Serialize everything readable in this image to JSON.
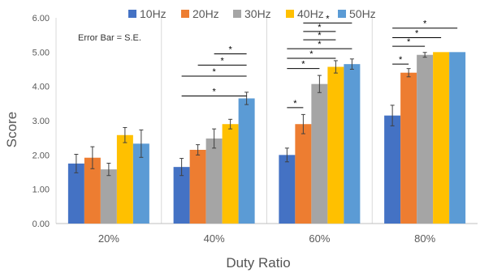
{
  "chart_data": {
    "type": "bar",
    "title": "",
    "xlabel": "Duty Ratio",
    "ylabel": "Score",
    "ylim": [
      0,
      6
    ],
    "yticks": [
      "0.00",
      "1.00",
      "2.00",
      "3.00",
      "4.00",
      "5.00",
      "6.00"
    ],
    "grid": "vertical category separators",
    "legend_position": "top",
    "annotation": "Error Bar = S.E.",
    "categories": [
      "20%",
      "40%",
      "60%",
      "80%"
    ],
    "series": [
      {
        "name": "10Hz",
        "color": "#4472C4",
        "values": [
          1.75,
          1.65,
          2.0,
          3.15
        ],
        "errors": [
          0.27,
          0.25,
          0.2,
          0.3
        ]
      },
      {
        "name": "20Hz",
        "color": "#ED7D31",
        "values": [
          1.92,
          2.15,
          2.9,
          4.4
        ],
        "errors": [
          0.32,
          0.15,
          0.28,
          0.12
        ]
      },
      {
        "name": "30Hz",
        "color": "#A5A5A5",
        "values": [
          1.58,
          2.48,
          4.07,
          4.92
        ],
        "errors": [
          0.18,
          0.28,
          0.25,
          0.07
        ]
      },
      {
        "name": "40Hz",
        "color": "#FFC000",
        "values": [
          2.58,
          2.9,
          4.57,
          5.0
        ],
        "errors": [
          0.22,
          0.14,
          0.18,
          0.0
        ]
      },
      {
        "name": "50Hz",
        "color": "#5B9BD5",
        "values": [
          2.33,
          3.65,
          4.65,
          5.0
        ],
        "errors": [
          0.4,
          0.18,
          0.15,
          0.0
        ]
      }
    ],
    "significance_marks": [
      {
        "category": "40%",
        "from": "10Hz",
        "to": "50Hz",
        "y": 3.72,
        "label": "*"
      },
      {
        "category": "40%",
        "from": "10Hz",
        "to": "50Hz",
        "y": 4.3,
        "label": "*"
      },
      {
        "category": "40%",
        "from": "20Hz",
        "to": "50Hz",
        "y": 4.62,
        "label": "*"
      },
      {
        "category": "40%",
        "from": "30Hz",
        "to": "50Hz",
        "y": 4.95,
        "label": "*"
      },
      {
        "category": "60%",
        "from": "10Hz",
        "to": "20Hz",
        "y": 3.38,
        "label": "*"
      },
      {
        "category": "60%",
        "from": "10Hz",
        "to": "30Hz",
        "y": 4.52,
        "label": "*"
      },
      {
        "category": "60%",
        "from": "10Hz",
        "to": "40Hz",
        "y": 4.82,
        "label": "*"
      },
      {
        "category": "60%",
        "from": "10Hz",
        "to": "50Hz",
        "y": 5.1,
        "label": "*"
      },
      {
        "category": "60%",
        "from": "20Hz",
        "to": "40Hz",
        "y": 5.36,
        "label": "*"
      },
      {
        "category": "60%",
        "from": "20Hz",
        "to": "40Hz",
        "y": 5.6,
        "label": "*"
      },
      {
        "category": "60%",
        "from": "20Hz",
        "to": "50Hz",
        "y": 5.85,
        "label": "*"
      },
      {
        "category": "80%",
        "from": "10Hz",
        "to": "20Hz",
        "y": 4.65,
        "label": "*"
      },
      {
        "category": "80%",
        "from": "10Hz",
        "to": "30Hz",
        "y": 5.17,
        "label": "*"
      },
      {
        "category": "80%",
        "from": "10Hz",
        "to": "40Hz",
        "y": 5.42,
        "label": "*"
      },
      {
        "category": "80%",
        "from": "10Hz",
        "to": "50Hz",
        "y": 5.7,
        "label": "*"
      }
    ]
  }
}
